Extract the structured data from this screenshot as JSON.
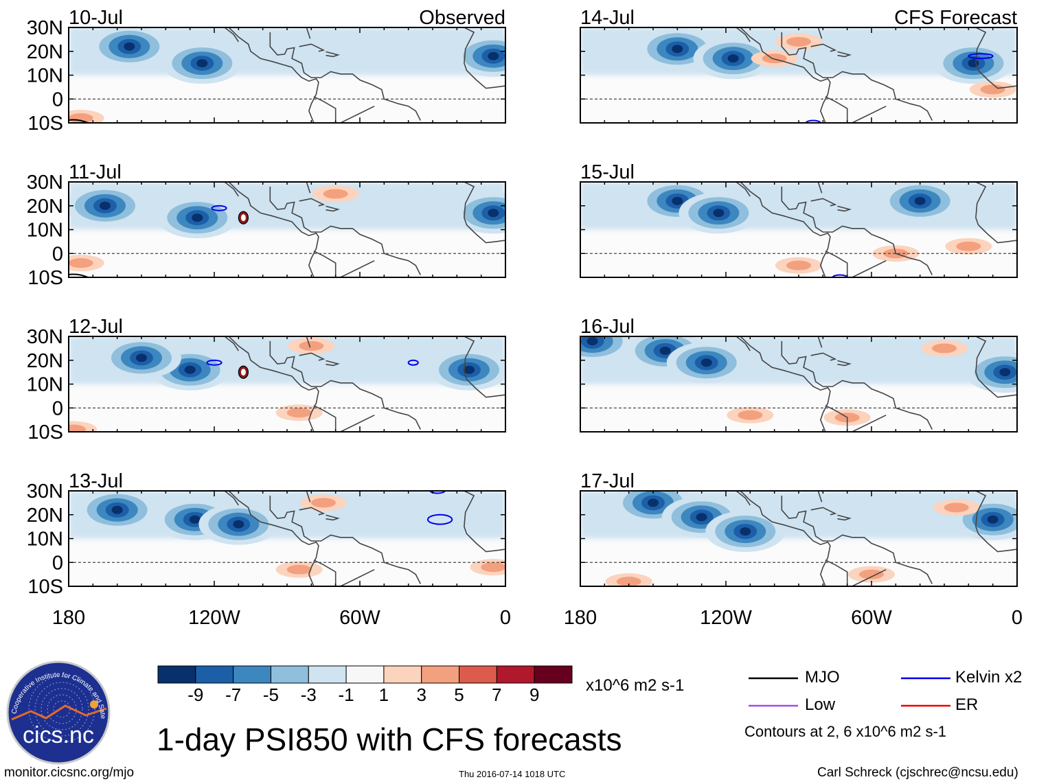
{
  "figure": {
    "title": "1-day PSI850 with CFS forecasts",
    "footer_left": "monitor.cicsnc.org/mjo",
    "footer_center": "Thu 2016-07-14 1018 UTC",
    "footer_right": "Carl Schreck (cjschrec@ncsu.edu)",
    "logo_text": "cics.nc",
    "logo_ring_text": "Cooperative Institute for Climate and Satellites",
    "units": "x10^6 m2 s-1",
    "contour_note": "Contours at 2, 6 x10^6 m2 s-1"
  },
  "column_titles": {
    "left": "Observed",
    "right": "CFS Forecast"
  },
  "panels": [
    {
      "date": "10-Jul",
      "lows": [
        [
          -155,
          22
        ],
        [
          -125,
          15
        ],
        [
          -5,
          18
        ]
      ],
      "highs": [
        [
          -175,
          -8
        ]
      ],
      "kelvin": [],
      "er": [],
      "mjo": true
    },
    {
      "date": "11-Jul",
      "lows": [
        [
          -127,
          15
        ],
        [
          -5,
          17
        ],
        [
          -165,
          20
        ]
      ],
      "highs": [
        [
          -70,
          25
        ],
        [
          -175,
          -4
        ]
      ],
      "kelvin": [
        [
          -118,
          19,
          3,
          1
        ]
      ],
      "er": [
        [
          -108,
          15
        ]
      ],
      "mjo": true
    },
    {
      "date": "12-Jul",
      "lows": [
        [
          -130,
          16
        ],
        [
          -150,
          21
        ],
        [
          -15,
          16
        ]
      ],
      "highs": [
        [
          -80,
          26
        ],
        [
          -85,
          -2
        ],
        [
          -178,
          -9
        ]
      ],
      "kelvin": [
        [
          -120,
          19,
          3,
          1
        ],
        [
          -38,
          19,
          2,
          1
        ]
      ],
      "er": [
        [
          -108,
          15
        ]
      ],
      "mjo": false
    },
    {
      "date": "13-Jul",
      "lows": [
        [
          -128,
          18
        ],
        [
          -110,
          16
        ],
        [
          -160,
          22
        ]
      ],
      "highs": [
        [
          -85,
          -3
        ],
        [
          -75,
          25
        ],
        [
          -5,
          -2
        ]
      ],
      "kelvin": [
        [
          -27,
          18,
          5,
          2
        ],
        [
          -28,
          30,
          3,
          1
        ]
      ],
      "er": [],
      "mjo": false
    },
    {
      "date": "14-Jul",
      "lows": [
        [
          -140,
          21
        ],
        [
          -117,
          17
        ],
        [
          -18,
          15
        ]
      ],
      "highs": [
        [
          -100,
          17
        ],
        [
          -90,
          24
        ],
        [
          -10,
          4
        ]
      ],
      "kelvin": [
        [
          -15,
          18,
          5,
          1
        ],
        [
          -84,
          -10,
          3,
          1
        ]
      ],
      "er": [],
      "mjo": false
    },
    {
      "date": "15-Jul",
      "lows": [
        [
          -140,
          22
        ],
        [
          -123,
          17
        ],
        [
          -40,
          22
        ]
      ],
      "highs": [
        [
          -90,
          -5
        ],
        [
          -20,
          3
        ],
        [
          -50,
          0
        ]
      ],
      "kelvin": [
        [
          -73,
          -10,
          3,
          1
        ]
      ],
      "er": [],
      "mjo": false
    },
    {
      "date": "16-Jul",
      "lows": [
        [
          -145,
          24
        ],
        [
          -128,
          19
        ],
        [
          -175,
          28
        ],
        [
          -5,
          15
        ]
      ],
      "highs": [
        [
          -70,
          -4
        ],
        [
          -110,
          -3
        ],
        [
          -30,
          25
        ]
      ],
      "kelvin": [],
      "er": [],
      "mjo": false
    },
    {
      "date": "17-Jul",
      "lows": [
        [
          -150,
          25
        ],
        [
          -130,
          19
        ],
        [
          -112,
          13
        ],
        [
          -10,
          18
        ]
      ],
      "highs": [
        [
          -160,
          -8
        ],
        [
          -60,
          -5
        ],
        [
          -25,
          23
        ]
      ],
      "kelvin": [],
      "er": [],
      "mjo": false
    }
  ],
  "lat_ticks": [
    "30N",
    "20N",
    "10N",
    "0",
    "10S"
  ],
  "lon_ticks": [
    "180",
    "120W",
    "60W",
    "0"
  ],
  "colorbar": {
    "colors": [
      "#08306b",
      "#1c5fa8",
      "#3d87c0",
      "#8fbfdc",
      "#cfe3f1",
      "#f7f7f7",
      "#fcd3bd",
      "#f3a07f",
      "#dc5b4d",
      "#b1182b",
      "#67001f"
    ],
    "labels": [
      "-9",
      "-7",
      "-5",
      "-3",
      "-1",
      "1",
      "3",
      "5",
      "7",
      "9"
    ]
  },
  "legend": [
    {
      "label": "MJO",
      "color": "#000000"
    },
    {
      "label": "Kelvin x2",
      "color": "#0000ee"
    },
    {
      "label": "Low",
      "color": "#a24be3"
    },
    {
      "label": "ER",
      "color": "#ee0000"
    }
  ]
}
